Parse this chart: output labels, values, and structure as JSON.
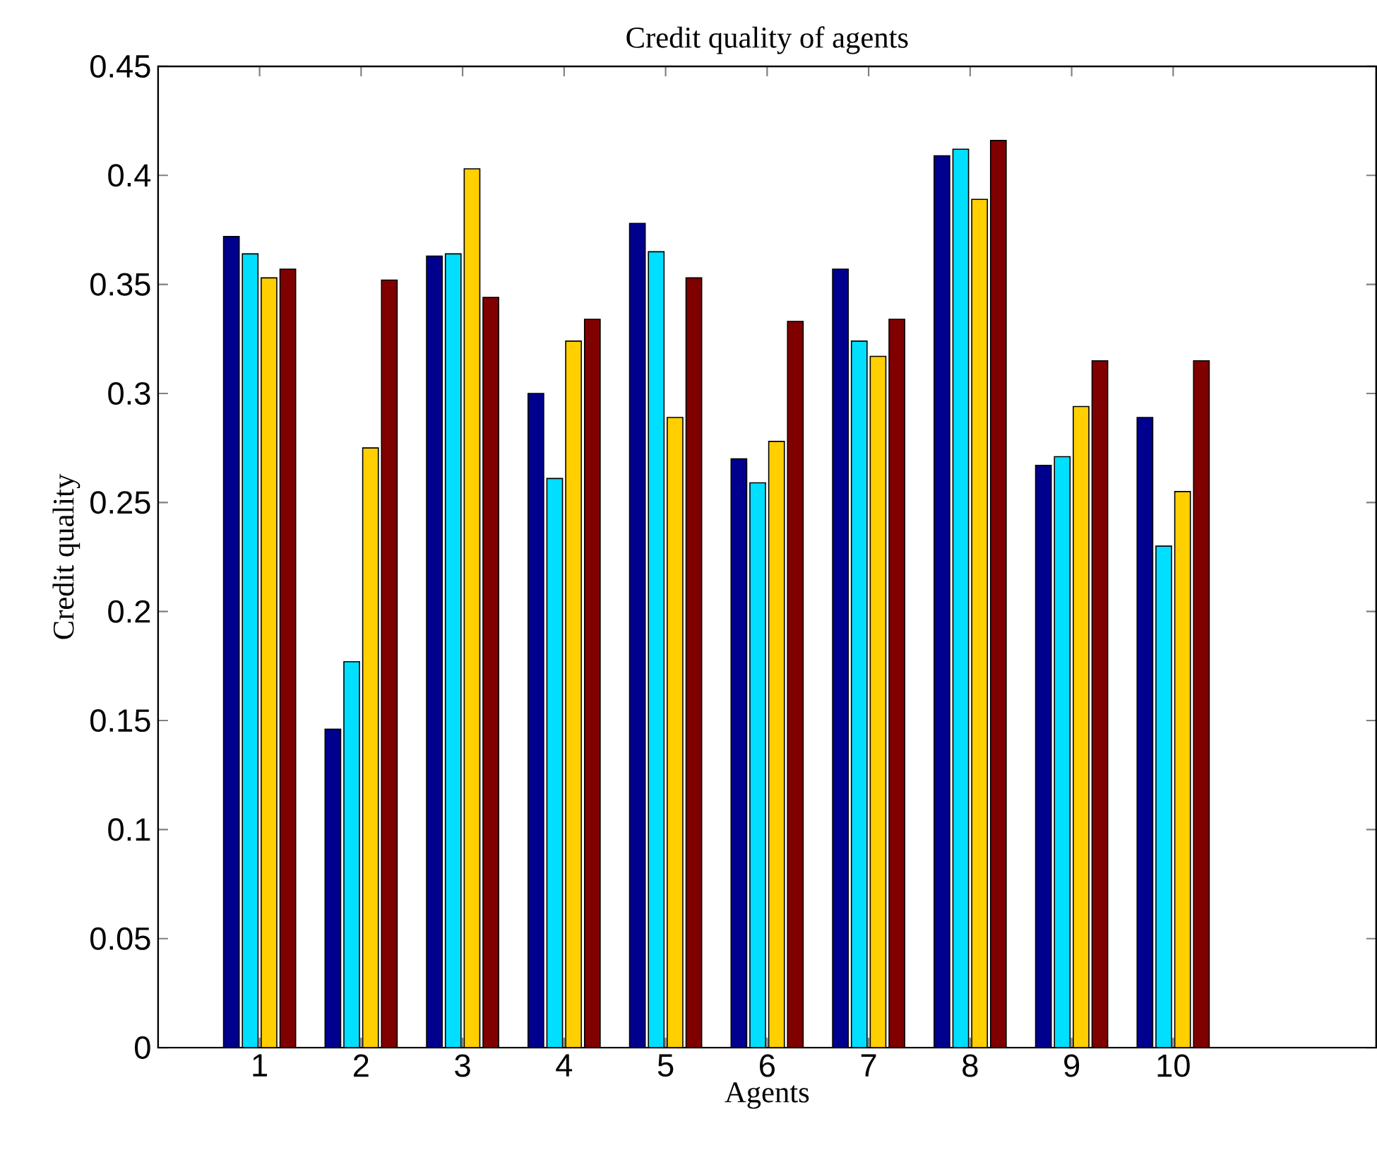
{
  "chart_data": {
    "type": "bar",
    "title": "Credit quality of agents",
    "xlabel": "Agents",
    "ylabel": "Credit quality",
    "x": [
      1,
      2,
      3,
      4,
      5,
      6,
      7,
      8,
      9,
      10
    ],
    "series": [
      {
        "color": "#00008f",
        "values": [
          0.372,
          0.146,
          0.363,
          0.3,
          0.378,
          0.27,
          0.357,
          0.409,
          0.267,
          0.289
        ]
      },
      {
        "color": "#00dfff",
        "values": [
          0.364,
          0.177,
          0.364,
          0.261,
          0.365,
          0.259,
          0.324,
          0.412,
          0.271,
          0.23
        ]
      },
      {
        "color": "#ffcf00",
        "values": [
          0.353,
          0.275,
          0.403,
          0.324,
          0.289,
          0.278,
          0.317,
          0.389,
          0.294,
          0.255
        ]
      },
      {
        "color": "#800000",
        "values": [
          0.357,
          0.352,
          0.344,
          0.334,
          0.353,
          0.333,
          0.334,
          0.416,
          0.315,
          0.315
        ]
      }
    ],
    "xlim": [
      0,
      12
    ],
    "xticks": [
      1,
      2,
      3,
      4,
      5,
      6,
      7,
      8,
      9,
      10
    ],
    "ylim": [
      0,
      0.45
    ],
    "yticks": [
      0,
      0.05,
      0.1,
      0.15,
      0.2,
      0.25,
      0.3,
      0.35,
      0.4,
      0.45
    ],
    "grid": false
  }
}
